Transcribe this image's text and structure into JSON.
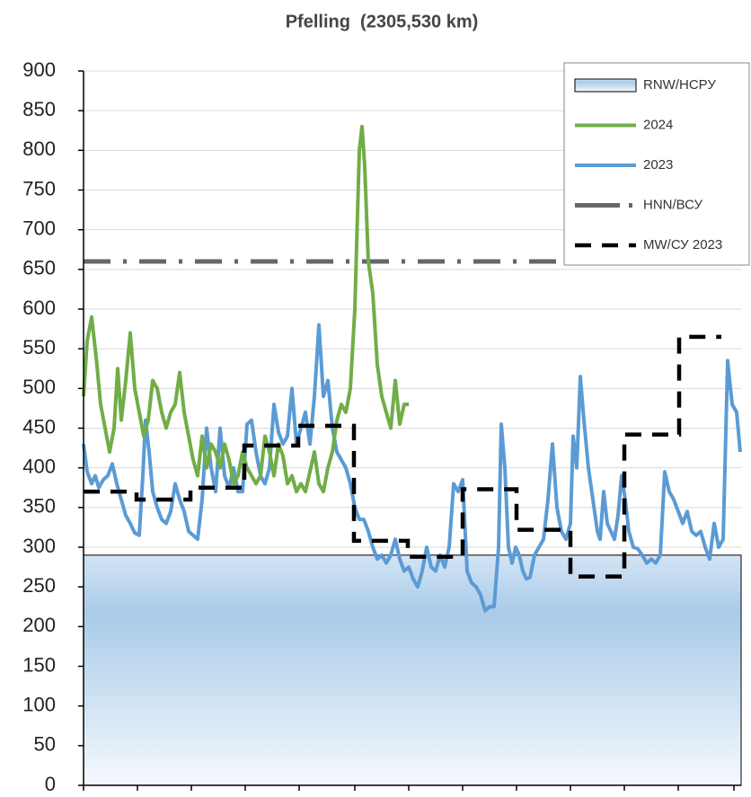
{
  "chart_data": {
    "type": "line",
    "title": "Pfelling  (2305,530 km)",
    "xlim": [
      0,
      366
    ],
    "xticks": [
      0,
      30,
      60,
      90,
      120,
      151,
      181,
      211,
      241,
      271,
      301,
      331,
      362
    ],
    "ylim": [
      0,
      900
    ],
    "yticks": [
      0,
      50,
      100,
      150,
      200,
      250,
      300,
      350,
      400,
      450,
      500,
      550,
      600,
      650,
      700,
      750,
      800,
      850,
      900
    ],
    "grid": true,
    "legend": "upper right",
    "series": [
      {
        "name": "RNW/НСРУ",
        "kind": "area-level",
        "color": "#a9cbe9",
        "value": 290
      },
      {
        "name": "2024",
        "color": "#70ad47",
        "x": [
          0,
          2,
          4.5,
          7,
          9.5,
          12,
          14.5,
          17,
          19,
          21,
          23.5,
          26,
          28.5,
          31,
          33.5,
          36,
          38.5,
          41,
          43.5,
          46,
          48.5,
          51,
          53.5,
          56,
          58.5,
          61,
          63.5,
          66,
          68.5,
          71,
          73.5,
          76,
          78.5,
          81,
          83.5,
          86,
          88.5,
          91,
          93.5,
          96,
          98.5,
          101,
          103.5,
          106,
          108.5,
          111,
          113.5,
          116,
          118.5,
          121,
          123.5,
          126,
          128.5,
          131,
          133.5,
          136,
          138.5,
          141,
          143.5,
          146,
          148.5,
          151,
          153.5,
          155,
          156.5,
          158.5,
          161,
          163.5,
          166,
          168.5,
          171,
          173.5,
          176,
          178.5,
          181
        ],
        "values": [
          490,
          560,
          590,
          540,
          480,
          450,
          420,
          450,
          525,
          460,
          510,
          570,
          500,
          470,
          440,
          460,
          510,
          500,
          470,
          450,
          470,
          480,
          520,
          470,
          440,
          410,
          390,
          440,
          400,
          430,
          420,
          400,
          430,
          410,
          380,
          390,
          420,
          400,
          390,
          380,
          390,
          440,
          420,
          390,
          430,
          415,
          380,
          390,
          370,
          380,
          370,
          395,
          420,
          380,
          370,
          400,
          420,
          460,
          480,
          470,
          500,
          600,
          800,
          830,
          780,
          660,
          620,
          530,
          490,
          470,
          450,
          510,
          455,
          480,
          480
        ]
      },
      {
        "name": "2023",
        "color": "#5b9bd5",
        "x": [
          0,
          2,
          4.5,
          6.5,
          8.5,
          11,
          13.5,
          16,
          18.5,
          21,
          23.5,
          26,
          28.5,
          31,
          33,
          34.5,
          36.5,
          38.5,
          41,
          43.5,
          46,
          48.5,
          51,
          53.5,
          56,
          58.5,
          61,
          63.5,
          66,
          68.5,
          71,
          73.5,
          76,
          78.5,
          81,
          83.5,
          86,
          88.5,
          91,
          93.5,
          96,
          98.5,
          101,
          103.5,
          106,
          108.5,
          111,
          113.5,
          116,
          118.5,
          121,
          123.5,
          126,
          128.5,
          131,
          133.5,
          136,
          138.5,
          141,
          143.5,
          146,
          148.5,
          151,
          153.5,
          156,
          158.5,
          161,
          163.5,
          166,
          168.5,
          171,
          173.5,
          176,
          178.5,
          181,
          183.5,
          186,
          188.5,
          191,
          193.5,
          196,
          198.5,
          201,
          203.5,
          206,
          208.5,
          211,
          213.5,
          216,
          218.5,
          221,
          223.5,
          226,
          228.5,
          231,
          232.5,
          234.5,
          236.5,
          238.5,
          240.5,
          242.5,
          244.5,
          246.5,
          248.5,
          251,
          253.5,
          256,
          258.5,
          261,
          263.5,
          266,
          268.5,
          271,
          272.5,
          274.5,
          276.5,
          278.5,
          281,
          283.5,
          286,
          287.5,
          289.5,
          291.5,
          293.5,
          295.5,
          297.5,
          299.5,
          301.5,
          303.5,
          306,
          308.5,
          311,
          313.5,
          316,
          318.5,
          321,
          323.5,
          326,
          328.5,
          331,
          333.5,
          336,
          338.5,
          341,
          343.5,
          346,
          348.5,
          351,
          353.5,
          356,
          358.5,
          361,
          363.5,
          365.5
        ],
        "values": [
          430,
          395,
          380,
          390,
          375,
          385,
          390,
          405,
          380,
          360,
          340,
          330,
          318,
          315,
          390,
          460,
          420,
          370,
          350,
          335,
          330,
          345,
          380,
          360,
          345,
          320,
          315,
          310,
          360,
          450,
          400,
          370,
          450,
          390,
          375,
          400,
          370,
          370,
          455,
          460,
          420,
          390,
          380,
          400,
          480,
          445,
          430,
          440,
          500,
          430,
          450,
          470,
          430,
          490,
          580,
          490,
          510,
          450,
          420,
          410,
          400,
          380,
          350,
          335,
          335,
          320,
          300,
          285,
          290,
          280,
          290,
          310,
          285,
          270,
          275,
          260,
          250,
          270,
          300,
          275,
          270,
          290,
          275,
          300,
          380,
          370,
          385,
          270,
          255,
          250,
          240,
          220,
          225,
          225,
          300,
          455,
          400,
          300,
          280,
          300,
          290,
          270,
          260,
          262,
          290,
          300,
          310,
          360,
          430,
          350,
          320,
          310,
          330,
          440,
          400,
          515,
          460,
          400,
          360,
          320,
          310,
          370,
          330,
          320,
          310,
          340,
          390,
          360,
          320,
          300,
          298,
          290,
          280,
          285,
          280,
          290,
          395,
          370,
          360,
          345,
          330,
          345,
          320,
          315,
          320,
          300,
          285,
          330,
          300,
          310,
          535,
          480,
          470,
          420
        ]
      },
      {
        "name": "HNN/ВСУ",
        "kind": "level",
        "color": "#666666",
        "value": 660
      },
      {
        "name": "MW/СУ 2023",
        "kind": "step",
        "color": "#000000",
        "x": [
          0,
          29.5,
          59.5,
          89.5,
          119.5,
          150.5,
          180.5,
          211,
          241,
          271,
          301,
          331.5
        ],
        "values": [
          370,
          360,
          375,
          428,
          453,
          308,
          288,
          373,
          322,
          263,
          442,
          565
        ]
      }
    ]
  }
}
